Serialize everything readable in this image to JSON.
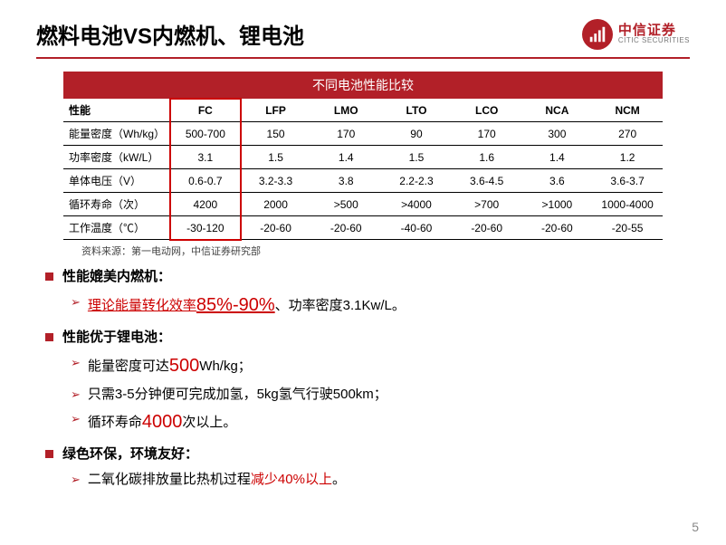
{
  "header": {
    "title": "燃料电池VS内燃机、锂电池",
    "logo_cn": "中信证券",
    "logo_en": "CITIC SECURITIES"
  },
  "divider_color": "#b22028",
  "table": {
    "title": "不同电池性能比较",
    "title_bg": "#b22028",
    "title_fg": "#ffffff",
    "border_color": "#000000",
    "highlight_border": "#cc0000",
    "columns": [
      "性能",
      "FC",
      "LFP",
      "LMO",
      "LTO",
      "LCO",
      "NCA",
      "NCM"
    ],
    "rows": [
      [
        "能量密度（Wh/kg）",
        "500-700",
        "150",
        "170",
        "90",
        "170",
        "300",
        "270"
      ],
      [
        "功率密度（kW/L）",
        "3.1",
        "1.5",
        "1.4",
        "1.5",
        "1.6",
        "1.4",
        "1.2"
      ],
      [
        "单体电压（V）",
        "0.6-0.7",
        "3.2-3.3",
        "3.8",
        "2.2-2.3",
        "3.6-4.5",
        "3.6",
        "3.6-3.7"
      ],
      [
        "循环寿命（次）",
        "4200",
        "2000",
        ">500",
        ">4000",
        ">700",
        ">1000",
        "1000-4000"
      ],
      [
        "工作温度（℃）",
        "-30-120",
        "-20-60",
        "-20-60",
        "-40-60",
        "-20-60",
        "-20-60",
        "-20-55"
      ]
    ],
    "source": "资料来源：第一电动网，中信证券研究部"
  },
  "bullets": {
    "b1_title": "性能媲美内燃机：",
    "b1_1_pre": "理论能量转化效率",
    "b1_1_pct": "85%-90%",
    "b1_1_post": "、功率密度3.1Kw/L。",
    "b2_title": "性能优于锂电池：",
    "b2_1_pre": "能量密度可达",
    "b2_1_val": "500",
    "b2_1_post": "Wh/kg；",
    "b2_2": "只需3-5分钟便可完成加氢，5kg氢气行驶500km；",
    "b2_3_pre": "循环寿命",
    "b2_3_val": "4000",
    "b2_3_post": "次以上。",
    "b3_title": "绿色环保，环境友好：",
    "b3_1_pre": "二氧化碳排放量比热机过程",
    "b3_1_red": "减少40%以上",
    "b3_1_post": "。"
  },
  "page_number": "5"
}
